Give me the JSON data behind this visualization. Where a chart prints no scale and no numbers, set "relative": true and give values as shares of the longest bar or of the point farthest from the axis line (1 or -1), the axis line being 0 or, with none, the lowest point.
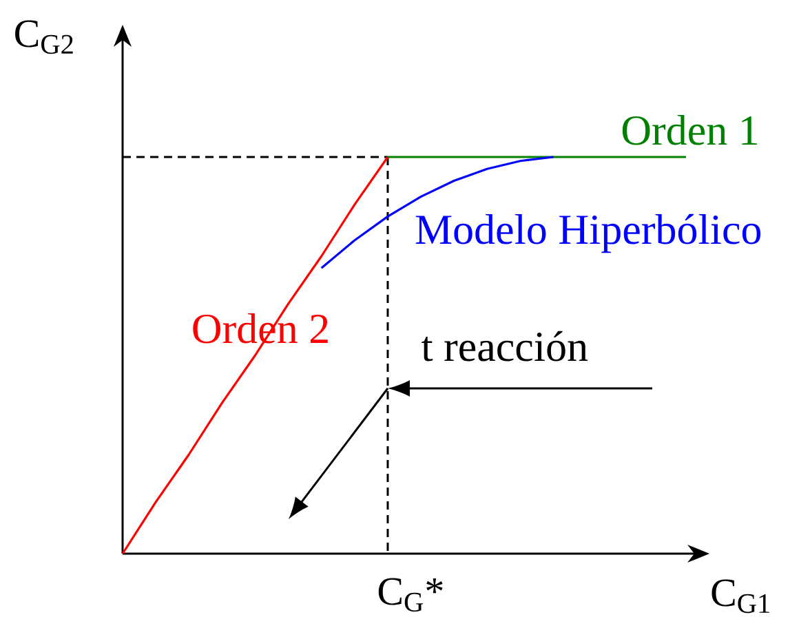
{
  "chart_data": {
    "type": "line",
    "relative": true,
    "xlabel": "C$_{G1}$",
    "ylabel": "C$_{G2}$",
    "categories": [
      null,
      null,
      null,
      null,
      null,
      null,
      null,
      null,
      null,
      null,
      null,
      null,
      null,
      null,
      null,
      null,
      null,
      null
    ],
    "series": [
      {
        "name": "Orden 2",
        "color": "#ff0000",
        "values": [
          0,
          0.13,
          0.25,
          0.38,
          0.5,
          0.63,
          0.75,
          0.88,
          1,
          null,
          null,
          null,
          null,
          null,
          null,
          null,
          null,
          null
        ]
      },
      {
        "name": "Orden 1",
        "color": "#008000",
        "values": [
          null,
          null,
          null,
          null,
          null,
          null,
          null,
          null,
          1,
          1,
          1,
          1,
          1,
          1,
          1,
          1,
          1,
          1
        ]
      },
      {
        "name": "Modelo Hiperbólico",
        "color": "#0000ff",
        "values": [
          null,
          null,
          null,
          null,
          null,
          null,
          0.72,
          0.79,
          0.85,
          0.9,
          0.94,
          0.97,
          0.99,
          1,
          null,
          null,
          null,
          null
        ]
      }
    ],
    "ref_lines": [
      {
        "axis": "y",
        "value": 1,
        "color": "#000000",
        "line_style": "dashed"
      }
    ],
    "annotations": [
      "t reacción",
      "C$_{G}$*"
    ],
    "marker": "none",
    "line_style": "solid",
    "legend": false,
    "grid": false
  }
}
